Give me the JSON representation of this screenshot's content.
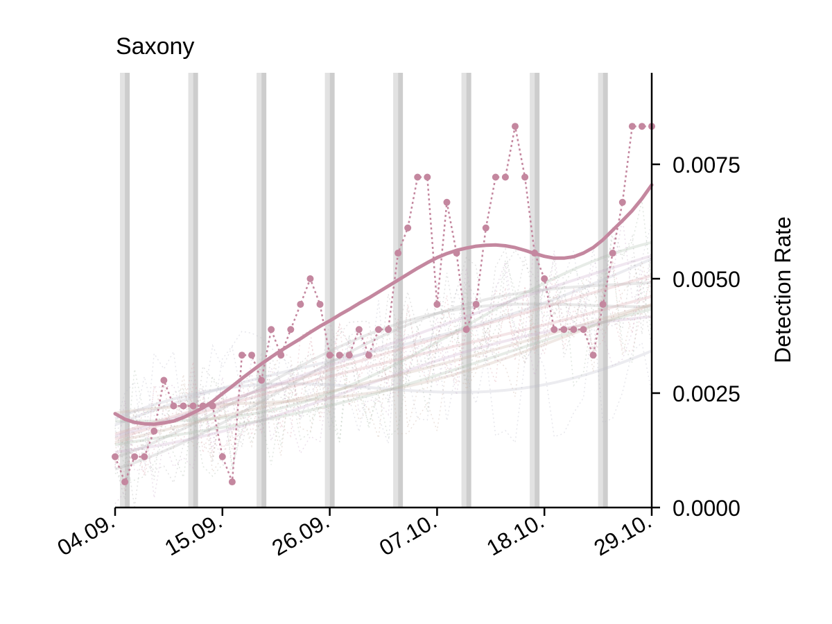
{
  "chart_data": {
    "type": "line",
    "title": "Saxony",
    "xlabel": "",
    "ylabel": "Detection Rate",
    "x_tick_labels": [
      "04.09.",
      "15.09.",
      "26.09.",
      "07.10.",
      "18.10.",
      "29.10."
    ],
    "x_tick_days": [
      0,
      11,
      22,
      33,
      44,
      55
    ],
    "xlim_days": [
      0,
      55
    ],
    "ylim": [
      0,
      0.0095
    ],
    "y_ticks": [
      0.0,
      0.0025,
      0.005,
      0.0075
    ],
    "y_tick_labels": [
      "0.0000",
      "0.0025",
      "0.0050",
      "0.0075"
    ],
    "y_axis_side": "right",
    "grid": false,
    "legend": "none",
    "weekend_bands": [
      [
        0.5,
        1.5
      ],
      [
        7.5,
        8.5
      ],
      [
        14.5,
        15.5
      ],
      [
        21.5,
        22.5
      ],
      [
        28.5,
        29.5
      ],
      [
        35.5,
        36.5
      ],
      [
        42.5,
        43.5
      ],
      [
        49.5,
        50.5
      ]
    ],
    "highlight_color": "#c4879f",
    "background_color": "#cfcfcf",
    "series": [
      {
        "values": [
          0.00111,
          0.00056,
          0.00111,
          0.00111,
          0.00167,
          0.00278,
          0.00222,
          0.00222,
          0.00222,
          0.00222,
          0.00222,
          0.00111,
          0.00056,
          0.00333,
          0.00333,
          0.00278,
          0.00389,
          0.00333,
          0.00389,
          0.00444,
          0.005,
          0.00444,
          0.00333,
          0.00333,
          0.00333,
          0.00389,
          0.00333,
          0.00389,
          0.00389,
          0.00556,
          0.00611,
          0.00722,
          0.00722,
          0.00444,
          0.00667,
          0.00556,
          0.00389,
          0.00444,
          0.00611,
          0.00722,
          0.00722,
          0.00833,
          0.00722,
          0.00556,
          0.005,
          0.00389,
          0.00389,
          0.00389,
          0.00389,
          0.00333,
          0.00444,
          0.00556,
          0.00667,
          0.00833,
          0.00833,
          0.00833
        ]
      },
      {
        "values": [
          0.00205,
          0.00193,
          0.00186,
          0.00183,
          0.00182,
          0.00185,
          0.00189,
          0.00197,
          0.00207,
          0.00218,
          0.00232,
          0.00249,
          0.00265,
          0.00282,
          0.00298,
          0.00314,
          0.00329,
          0.00343,
          0.00356,
          0.00369,
          0.00383,
          0.00396,
          0.00408,
          0.00421,
          0.00433,
          0.00446,
          0.00458,
          0.00471,
          0.00484,
          0.00497,
          0.0051,
          0.00523,
          0.00535,
          0.00546,
          0.00555,
          0.00562,
          0.00567,
          0.00571,
          0.00573,
          0.00574,
          0.00572,
          0.00568,
          0.00562,
          0.00555,
          0.00549,
          0.00545,
          0.00545,
          0.00548,
          0.00556,
          0.00568,
          0.00585,
          0.00606,
          0.00627,
          0.00649,
          0.00675,
          0.00705
        ]
      }
    ]
  }
}
